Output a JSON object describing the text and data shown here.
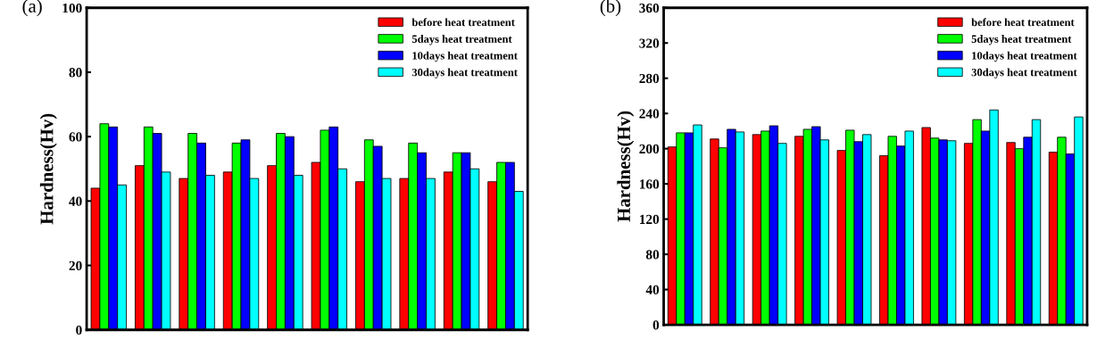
{
  "chart_data": [
    {
      "type": "bar",
      "title": "(a)",
      "ylabel": "Hardness(Hv)",
      "categories": [
        null,
        null,
        null,
        null,
        null,
        null,
        null,
        null,
        null,
        null
      ],
      "ylim": [
        0,
        100
      ],
      "yticks": [
        0,
        20,
        40,
        60,
        80,
        100
      ],
      "legend": "top right",
      "grid": false,
      "tick_labels": "y",
      "series": [
        {
          "name": "before heat treatment",
          "color": "#ff0000",
          "values": [
            44,
            51,
            47,
            49,
            51,
            52,
            46,
            47,
            49,
            46
          ]
        },
        {
          "name": "5days heat treatment",
          "color": "#00ff00",
          "values": [
            64,
            63,
            61,
            58,
            61,
            62,
            59,
            58,
            55,
            52
          ]
        },
        {
          "name": "10days heat treatment",
          "color": "#0000ff",
          "values": [
            63,
            61,
            58,
            59,
            60,
            63,
            57,
            55,
            55,
            52
          ]
        },
        {
          "name": "30days heat treatment",
          "color": "#00ffff",
          "values": [
            45,
            49,
            48,
            47,
            48,
            50,
            47,
            47,
            50,
            43
          ]
        }
      ]
    },
    {
      "type": "bar",
      "title": "(b)",
      "ylabel": "Hardness(Hv)",
      "categories": [
        null,
        null,
        null,
        null,
        null,
        null,
        null,
        null,
        null,
        null
      ],
      "ylim": [
        0,
        360
      ],
      "yticks": [
        0,
        40,
        80,
        120,
        160,
        200,
        240,
        280,
        320,
        360
      ],
      "legend": "top right",
      "grid": false,
      "tick_labels": "y",
      "series": [
        {
          "name": "before heat treatment",
          "color": "#ff0000",
          "values": [
            202,
            211,
            216,
            214,
            198,
            192,
            224,
            206,
            207,
            196
          ]
        },
        {
          "name": "5days heat treatment",
          "color": "#00ff00",
          "values": [
            218,
            201,
            220,
            222,
            221,
            214,
            212,
            233,
            200,
            213
          ]
        },
        {
          "name": "10days heat treatment",
          "color": "#0000ff",
          "values": [
            218,
            222,
            226,
            225,
            208,
            203,
            210,
            220,
            213,
            194
          ]
        },
        {
          "name": "30days heat treatment",
          "color": "#00ffff",
          "values": [
            227,
            219,
            206,
            210,
            216,
            220,
            209,
            244,
            233,
            236
          ]
        }
      ]
    }
  ]
}
